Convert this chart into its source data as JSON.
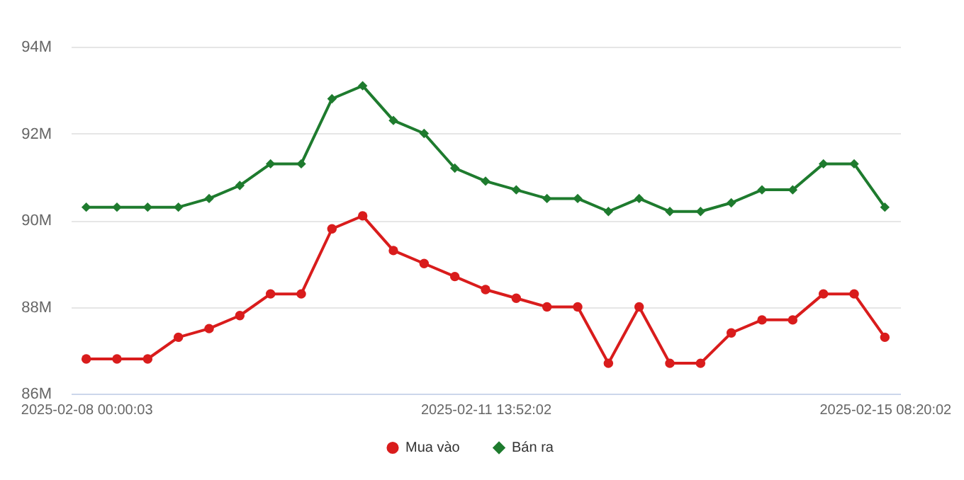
{
  "chart_data": {
    "type": "line",
    "categories": [
      "2025-02-08 00:00:03",
      null,
      null,
      null,
      null,
      null,
      null,
      null,
      null,
      null,
      null,
      null,
      null,
      "2025-02-11 13:52:02",
      null,
      null,
      null,
      null,
      null,
      null,
      null,
      null,
      null,
      null,
      null,
      null,
      "2025-02-15 08:20:02"
    ],
    "series": [
      {
        "name": "Mua vào",
        "color": "#d91c1c",
        "marker": "circle",
        "values": [
          86.8,
          86.8,
          86.8,
          87.3,
          87.5,
          87.8,
          88.3,
          88.3,
          89.8,
          90.1,
          89.3,
          89.0,
          88.7,
          88.4,
          88.2,
          88.0,
          88.0,
          86.7,
          88.0,
          86.7,
          86.7,
          87.4,
          87.7,
          87.7,
          88.3,
          88.3,
          87.3
        ]
      },
      {
        "name": "Bán ra",
        "color": "#1e7b2e",
        "marker": "diamond",
        "values": [
          90.3,
          90.3,
          90.3,
          90.3,
          90.5,
          90.8,
          91.3,
          91.3,
          92.8,
          93.1,
          92.3,
          92.0,
          91.2,
          90.9,
          90.7,
          90.5,
          90.5,
          90.2,
          90.5,
          90.2,
          90.2,
          90.4,
          90.7,
          90.7,
          91.3,
          91.3,
          90.3
        ]
      }
    ],
    "ylim": [
      86,
      94
    ],
    "yticks": [
      {
        "value": 86,
        "label": "86M"
      },
      {
        "value": 88,
        "label": "88M"
      },
      {
        "value": 90,
        "label": "90M"
      },
      {
        "value": 92,
        "label": "92M"
      },
      {
        "value": 94,
        "label": "94M"
      }
    ],
    "grid": "y",
    "legend": "bottom",
    "line_style": "solid"
  }
}
